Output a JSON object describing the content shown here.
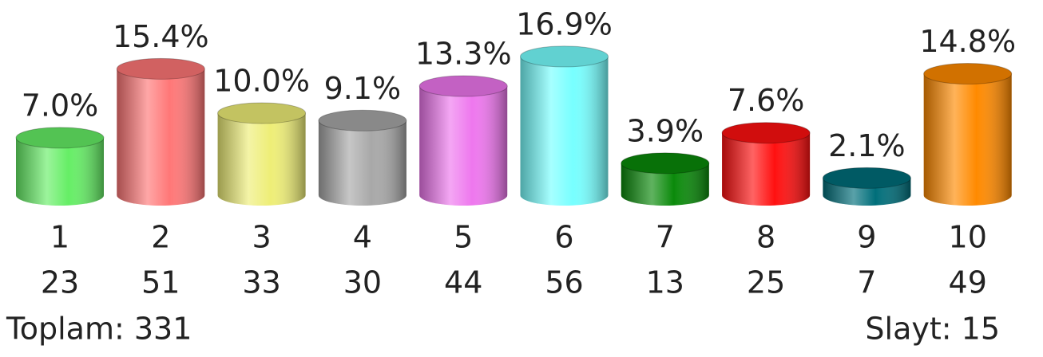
{
  "chart_data": {
    "type": "bar",
    "categories": [
      "1",
      "2",
      "3",
      "4",
      "5",
      "6",
      "7",
      "8",
      "9",
      "10"
    ],
    "values": [
      7.0,
      15.4,
      10.0,
      9.1,
      13.3,
      16.9,
      3.9,
      7.6,
      2.1,
      14.8
    ],
    "value_labels": [
      "7.0%",
      "15.4%",
      "10.0%",
      "9.1%",
      "13.3%",
      "16.9%",
      "3.9%",
      "7.6%",
      "2.1%",
      "14.8%"
    ],
    "counts": [
      23,
      51,
      33,
      30,
      44,
      56,
      13,
      25,
      7,
      49
    ],
    "colors": [
      "#66ee66",
      "#ff7777",
      "#eeee77",
      "#a8a8a8",
      "#ee77ee",
      "#77ffff",
      "#0a8a0a",
      "#ff1010",
      "#006e7a",
      "#ff8a00"
    ],
    "total": "Toplam: 331",
    "slide": "Slayt: 15"
  }
}
